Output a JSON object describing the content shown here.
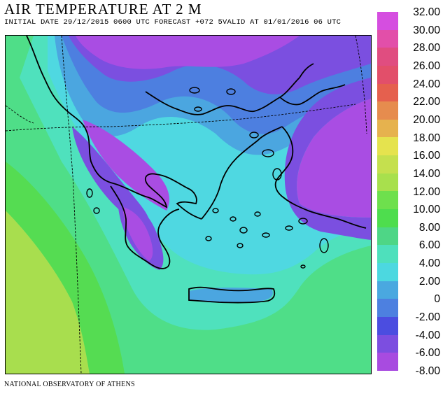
{
  "title": "AIR TEMPERATURE AT 2 M",
  "subtitle": "INITIAL DATE 29/12/2015   0600 UTC  FORECAST +072 5VALID AT  01/01/2016  06 UTC",
  "credit": "NATIONAL OBSERVATORY OF ATHENS",
  "legend": {
    "labels": [
      "32.00",
      "30.00",
      "28.00",
      "26.00",
      "24.00",
      "22.00",
      "20.00",
      "18.00",
      "16.00",
      "14.00",
      "12.00",
      "10.00",
      "8.00",
      "6.00",
      "4.00",
      "2.00",
      "0",
      "-2.00",
      "-4.00",
      "-6.00",
      "-8.00"
    ],
    "colors": [
      "#d54ee0",
      "#e24fa9",
      "#e04d80",
      "#e24f6a",
      "#e5604e",
      "#e68c4e",
      "#e6b24e",
      "#e5e34e",
      "#c5e04e",
      "#a8e04d",
      "#6ee04d",
      "#4edd4e",
      "#4ed686",
      "#4ee0bc",
      "#4cd8e0",
      "#4aa8e0",
      "#4d80e0",
      "#4b4de0",
      "#7c4ee0",
      "#a84be0"
    ]
  },
  "map_colors": {
    "violet": "#a94de3",
    "purple": "#7b4fe0",
    "blue": "#4d7fe0",
    "lightblue": "#4ba6e0",
    "cyan": "#4fd8e1",
    "aqua": "#4fe1bd",
    "green": "#4fde88",
    "brightgreen": "#55dc52",
    "yellowgreen": "#a8de4e",
    "coast": "#000000"
  }
}
